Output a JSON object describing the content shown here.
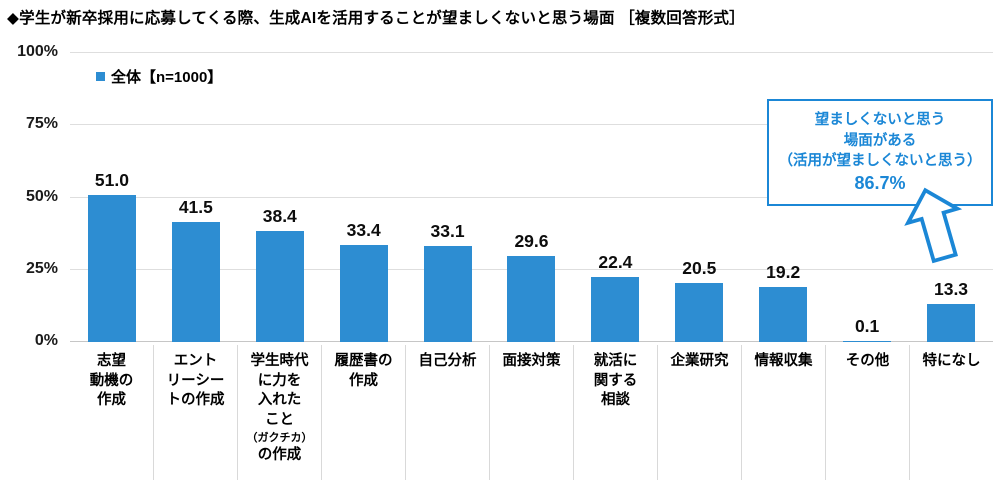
{
  "title": "◆学生が新卒採用に応募してくる際、生成AIを活用することが望ましくないと思う場面 ［複数回答形式］",
  "legend": {
    "label": "全体【n=1000】",
    "swatch_color": "#2d8dd2"
  },
  "callout": {
    "lines": [
      "望ましくないと思う",
      "場面がある",
      "（活用が望ましくないと思う）",
      "86.7%"
    ],
    "color": "#1b87d6",
    "arrow_icon": "up-arrow"
  },
  "chart_data": {
    "type": "bar",
    "title": "学生が新卒採用に応募してくる際、生成AIを活用することが望ましくないと思う場面（複数回答形式）",
    "legend_entries": [
      "全体【n=1000】"
    ],
    "legend_position": "top-left",
    "categories": [
      "志望動機の作成",
      "エントリーシートの作成",
      "学生時代に力を入れたこと（ガクチカ）の作成",
      "履歴書の作成",
      "自己分析",
      "面接対策",
      "就活に関する相談",
      "企業研究",
      "情報収集",
      "その他",
      "特になし"
    ],
    "category_display": [
      [
        "志望",
        "動機の",
        "作成"
      ],
      [
        "エント",
        "リーシー",
        "トの作成"
      ],
      [
        "学生時代",
        "に力を",
        "入れた",
        "こと",
        {
          "text": "（ガクチカ）",
          "small": true
        },
        "の作成"
      ],
      [
        "履歴書の",
        "作成"
      ],
      [
        "自己分析"
      ],
      [
        "面接対策"
      ],
      [
        "就活に",
        "関する",
        "相談"
      ],
      [
        "企業研究"
      ],
      [
        "情報収集"
      ],
      [
        "その他"
      ],
      [
        "特になし"
      ]
    ],
    "values": [
      51.0,
      41.5,
      38.4,
      33.4,
      33.1,
      29.6,
      22.4,
      20.5,
      19.2,
      0.1,
      13.3
    ],
    "value_labels": [
      "51.0",
      "41.5",
      "38.4",
      "33.4",
      "33.1",
      "29.6",
      "22.4",
      "20.5",
      "19.2",
      "0.1",
      "13.3"
    ],
    "unit": "%",
    "ylim": [
      0,
      100
    ],
    "yticks": [
      0,
      25,
      50,
      75,
      100
    ],
    "ytick_labels": [
      "0%",
      "25%",
      "50%",
      "75%",
      "100%"
    ],
    "grid": true,
    "bar_color": "#2d8dd2",
    "annotation": "望ましくないと思う場面がある（活用が望ましくないと思う） 86.7%"
  }
}
